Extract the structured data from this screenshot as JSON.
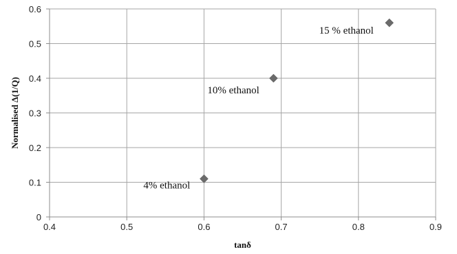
{
  "chart_data": {
    "type": "scatter",
    "xlabel": "tanδ",
    "ylabel": "Normalised Δ(1/Q)",
    "xlim": [
      0.4,
      0.9
    ],
    "ylim": [
      0,
      0.6
    ],
    "x_ticks": [
      "0.4",
      "0.5",
      "0.6",
      "0.7",
      "0.8",
      "0.9"
    ],
    "y_ticks": [
      "0",
      "0.1",
      "0.2",
      "0.3",
      "0.4",
      "0.5",
      "0.6"
    ],
    "grid": true,
    "marker_color": "#6b6b6b",
    "marker": "diamond",
    "points": [
      {
        "x": 0.6,
        "y": 0.11,
        "label": "4% ethanol"
      },
      {
        "x": 0.69,
        "y": 0.4,
        "label": "10% ethanol"
      },
      {
        "x": 0.84,
        "y": 0.56,
        "label": "15 % ethanol"
      }
    ]
  }
}
